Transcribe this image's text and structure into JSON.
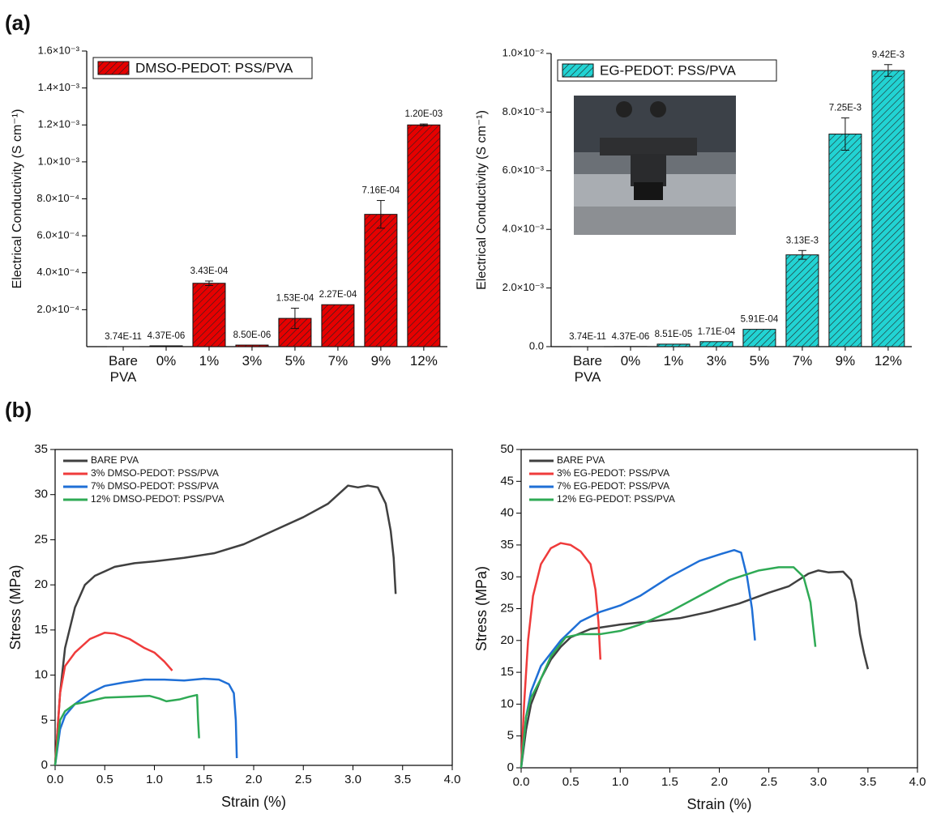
{
  "panel_labels": [
    "(a)",
    "(b)"
  ],
  "chart_data": [
    {
      "type": "bar",
      "ylabel": "Electrical Conductivity (S cm⁻¹)",
      "categories": [
        "Bare PVA",
        "0%",
        "1%",
        "3%",
        "5%",
        "7%",
        "9%",
        "12%"
      ],
      "series": [
        {
          "name": "DMSO-PEDOT: PSS/PVA",
          "color": "#e60000",
          "values": [
            3.74e-11,
            4.37e-06,
            0.000343,
            8.5e-06,
            0.000153,
            0.000227,
            0.000716,
            0.0012
          ],
          "value_labels": [
            "3.74E-11",
            "4.37E-06",
            "3.43E-04",
            "8.50E-06",
            "1.53E-04",
            "2.27E-04",
            "7.16E-04",
            "1.20E-03"
          ],
          "errors": [
            null,
            null,
            1.2e-05,
            null,
            5.5e-05,
            null,
            7.5e-05,
            5e-06
          ]
        }
      ],
      "ylim": [
        0,
        0.0016
      ],
      "yticks": [
        {
          "value": 0.0002,
          "label": "2.0×10⁻⁴"
        },
        {
          "value": 0.0004,
          "label": "4.0×10⁻⁴"
        },
        {
          "value": 0.0006,
          "label": "6.0×10⁻⁴"
        },
        {
          "value": 0.0008,
          "label": "8.0×10⁻⁴"
        },
        {
          "value": 0.001,
          "label": "1.0×10⁻³"
        },
        {
          "value": 0.0012,
          "label": "1.2×10⁻³"
        },
        {
          "value": 0.0014,
          "label": "1.4×10⁻³"
        },
        {
          "value": 0.0016,
          "label": "1.6×10⁻³"
        }
      ],
      "hatch": true,
      "legend": "upper left"
    },
    {
      "type": "bar",
      "ylabel": "Electrical Conductivity (S cm⁻¹)",
      "categories": [
        "Bare PVA",
        "0%",
        "1%",
        "3%",
        "5%",
        "7%",
        "9%",
        "12%"
      ],
      "series": [
        {
          "name": "EG-PEDOT: PSS/PVA",
          "color": "#22d3d3",
          "values": [
            3.74e-11,
            4.37e-06,
            8.51e-05,
            0.000171,
            0.000591,
            0.00313,
            0.00725,
            0.00942
          ],
          "value_labels": [
            "3.74E-11",
            "4.37E-06",
            "8.51E-05",
            "1.71E-04",
            "5.91E-04",
            "3.13E-3",
            "7.25E-3",
            "9.42E-3"
          ],
          "errors": [
            null,
            null,
            null,
            null,
            null,
            0.00015,
            0.00055,
            0.0002
          ]
        }
      ],
      "ylim": [
        0,
        0.01
      ],
      "yticks": [
        {
          "value": 0,
          "label": "0.0"
        },
        {
          "value": 0.002,
          "label": "2.0×10⁻³"
        },
        {
          "value": 0.004,
          "label": "4.0×10⁻³"
        },
        {
          "value": 0.006,
          "label": "6.0×10⁻³"
        },
        {
          "value": 0.008,
          "label": "8.0×10⁻³"
        },
        {
          "value": 0.01,
          "label": "1.0×10⁻²"
        }
      ],
      "hatch": true,
      "legend": "upper left"
    },
    {
      "type": "line",
      "xlabel": "Strain (%)",
      "ylabel": "Stress (MPa)",
      "series": [
        {
          "name": "BARE PVA",
          "color": "#404040",
          "x": [
            0,
            0.05,
            0.1,
            0.2,
            0.3,
            0.4,
            0.6,
            0.8,
            1.0,
            1.3,
            1.6,
            1.9,
            2.2,
            2.5,
            2.75,
            2.95,
            3.05,
            3.15,
            3.25,
            3.33,
            3.38,
            3.41,
            3.43
          ],
          "values": [
            0,
            8,
            13,
            17.5,
            20,
            21,
            22,
            22.4,
            22.6,
            23,
            23.5,
            24.5,
            26,
            27.5,
            29,
            31,
            30.8,
            31,
            30.8,
            29,
            26,
            23,
            19
          ]
        },
        {
          "name": "3% DMSO-PEDOT: PSS/PVA",
          "color": "#ef3b3b",
          "x": [
            0,
            0.05,
            0.1,
            0.2,
            0.35,
            0.5,
            0.6,
            0.75,
            0.9,
            1.0,
            1.1,
            1.18
          ],
          "values": [
            0,
            8,
            11,
            12.5,
            14,
            14.7,
            14.6,
            14,
            13,
            12.5,
            11.5,
            10.5
          ]
        },
        {
          "name": "7% DMSO-PEDOT: PSS/PVA",
          "color": "#1f6fd6",
          "x": [
            0,
            0.05,
            0.1,
            0.2,
            0.35,
            0.5,
            0.7,
            0.9,
            1.1,
            1.3,
            1.5,
            1.65,
            1.75,
            1.8,
            1.82,
            1.83
          ],
          "values": [
            0,
            4,
            5.5,
            6.8,
            8,
            8.8,
            9.2,
            9.5,
            9.5,
            9.4,
            9.6,
            9.5,
            9,
            8,
            5,
            0.8
          ]
        },
        {
          "name": "12% DMSO-PEDOT: PSS/PVA",
          "color": "#2faa55",
          "x": [
            0,
            0.05,
            0.1,
            0.2,
            0.3,
            0.5,
            0.75,
            0.95,
            1.05,
            1.12,
            1.25,
            1.35,
            1.43,
            1.44,
            1.45
          ],
          "values": [
            0,
            5,
            6,
            6.8,
            7,
            7.5,
            7.6,
            7.7,
            7.4,
            7.1,
            7.3,
            7.6,
            7.8,
            5,
            3
          ]
        }
      ],
      "xlim": [
        0,
        4
      ],
      "xticks": [
        {
          "value": 0,
          "label": "0.0"
        },
        {
          "value": 0.5,
          "label": "0.5"
        },
        {
          "value": 1,
          "label": "1.0"
        },
        {
          "value": 1.5,
          "label": "1.5"
        },
        {
          "value": 2,
          "label": "2.0"
        },
        {
          "value": 2.5,
          "label": "2.5"
        },
        {
          "value": 3,
          "label": "3.0"
        },
        {
          "value": 3.5,
          "label": "3.5"
        },
        {
          "value": 4,
          "label": "4.0"
        }
      ],
      "ylim": [
        0,
        35
      ],
      "yticks": [
        0,
        5,
        10,
        15,
        20,
        25,
        30,
        35
      ],
      "legend": "upper left"
    },
    {
      "type": "line",
      "xlabel": "Strain (%)",
      "ylabel": "Stress (MPa)",
      "series": [
        {
          "name": "BARE PVA",
          "color": "#404040",
          "x": [
            0,
            0.05,
            0.1,
            0.2,
            0.3,
            0.4,
            0.5,
            0.7,
            1.0,
            1.3,
            1.6,
            1.9,
            2.2,
            2.5,
            2.7,
            2.9,
            3.0,
            3.1,
            3.25,
            3.33,
            3.38,
            3.42,
            3.46,
            3.5
          ],
          "values": [
            0,
            6,
            10,
            14,
            17,
            19,
            20.5,
            21.8,
            22.5,
            23,
            23.5,
            24.5,
            25.8,
            27.5,
            28.5,
            30.5,
            31,
            30.7,
            30.8,
            29.5,
            26,
            21,
            18,
            15.5
          ]
        },
        {
          "name": "3% EG-PEDOT: PSS/PVA",
          "color": "#ef3b3b",
          "x": [
            0,
            0.03,
            0.07,
            0.12,
            0.2,
            0.3,
            0.4,
            0.5,
            0.6,
            0.7,
            0.75,
            0.78,
            0.8
          ],
          "values": [
            0,
            10,
            20,
            27,
            32,
            34.5,
            35.3,
            35,
            34,
            32,
            28,
            23,
            17
          ]
        },
        {
          "name": "7% EG-PEDOT: PSS/PVA",
          "color": "#1f6fd6",
          "x": [
            0,
            0.05,
            0.1,
            0.2,
            0.4,
            0.6,
            0.8,
            1.0,
            1.2,
            1.5,
            1.8,
            2.0,
            2.15,
            2.22,
            2.28,
            2.33,
            2.36
          ],
          "values": [
            0,
            8,
            12,
            16,
            20,
            23,
            24.5,
            25.5,
            27,
            30,
            32.5,
            33.5,
            34.2,
            33.8,
            30,
            25,
            20
          ]
        },
        {
          "name": "12% EG-PEDOT: PSS/PVA",
          "color": "#2faa55",
          "x": [
            0,
            0.05,
            0.1,
            0.2,
            0.3,
            0.45,
            0.6,
            0.8,
            1.0,
            1.2,
            1.5,
            1.8,
            2.1,
            2.4,
            2.6,
            2.75,
            2.85,
            2.92,
            2.97
          ],
          "values": [
            0,
            8,
            11,
            14,
            17.5,
            20.5,
            21,
            21,
            21.5,
            22.5,
            24.5,
            27,
            29.5,
            31,
            31.5,
            31.5,
            30,
            26,
            19
          ]
        }
      ],
      "xlim": [
        0,
        4
      ],
      "xticks": [
        {
          "value": 0,
          "label": "0.0"
        },
        {
          "value": 0.5,
          "label": "0.5"
        },
        {
          "value": 1,
          "label": "1.0"
        },
        {
          "value": 1.5,
          "label": "1.5"
        },
        {
          "value": 2,
          "label": "2.0"
        },
        {
          "value": 2.5,
          "label": "2.5"
        },
        {
          "value": 3,
          "label": "3.0"
        },
        {
          "value": 3.5,
          "label": "3.5"
        },
        {
          "value": 4,
          "label": "4.0"
        }
      ],
      "ylim": [
        0,
        50
      ],
      "yticks": [
        0,
        5,
        10,
        15,
        20,
        25,
        30,
        35,
        40,
        45,
        50
      ],
      "legend": "upper left"
    }
  ]
}
